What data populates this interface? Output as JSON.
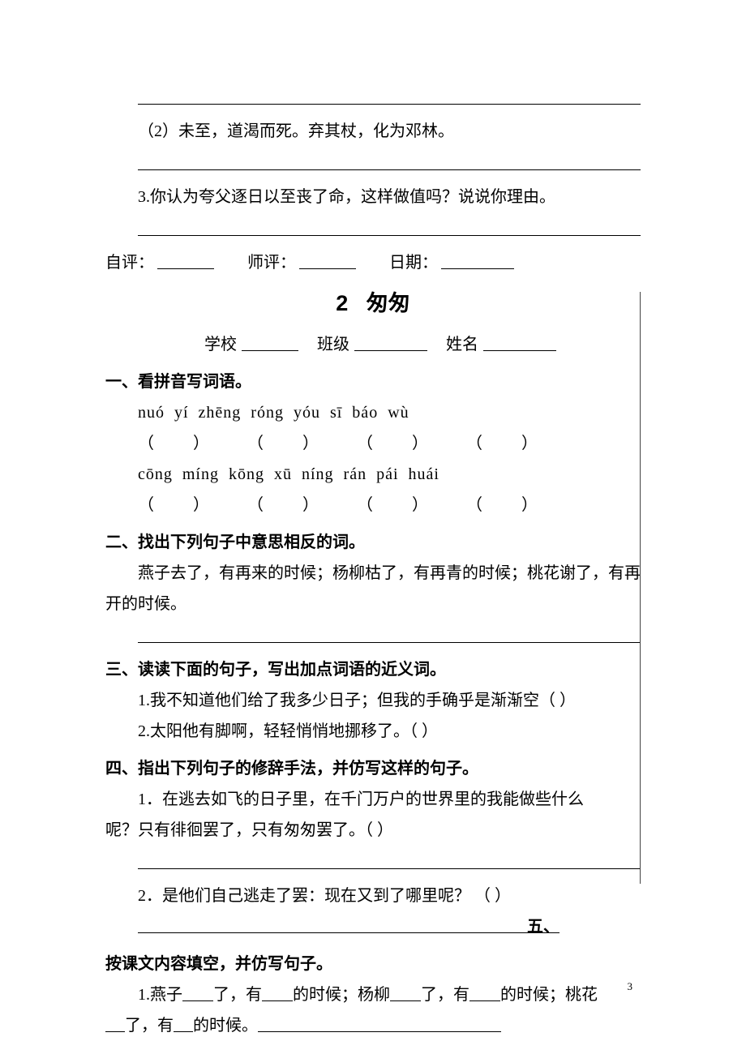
{
  "prev": {
    "blank1": "",
    "q2": "（2）未至，道渴而死。弃其杖，化为邓林。",
    "q3": "3.你认为夸父逐日以至丧了命，这样做值吗？说说你理由。"
  },
  "eval": {
    "self_label": "自评：",
    "teacher_label": "师评：",
    "date_label": "日期："
  },
  "title": {
    "num": "2",
    "text": "匆匆"
  },
  "info": {
    "school": "学校",
    "class": "班级",
    "name": "姓名"
  },
  "s1": {
    "heading": "一、看拼音写词语。",
    "p1": "nuó  yí     zhēng  róng    yóu  sī     báo  wù",
    "p2": "cōng  míng   kōng  xū      níng  rán   pái  huái"
  },
  "s2": {
    "heading": "二、找出下列句子中意思相反的词。",
    "text": "燕子去了，有再来的时候；杨柳枯了，有再青的时候；桃花谢了，有再开的时候。"
  },
  "s3": {
    "heading": "三、读读下面的句子，写出加点词语的近义词。",
    "q1": "1.我不知道他们给了我多少日子；但我的手确乎是渐渐空（    ）",
    "q2": "2.太阳他有脚啊，轻轻悄悄地挪移了。（     ）"
  },
  "s4": {
    "heading": "四、指出下列句子的修辞手法，并仿写这样的句子。",
    "q1a": "1．在逃去如飞的日子里，在千门万户的世界里的我能做些什么",
    "q1b": "呢？只有徘徊罢了，只有匆匆罢了。（        ）",
    "q2": "2．是他们自己逃走了罢：现在又到了哪里呢？ （        ）"
  },
  "s5": {
    "trailing": "五、",
    "heading": "按课文内容填空，并仿写句子。",
    "q1_a": "1.燕子",
    "q1_b": "了，有",
    "q1_c": "的时候；杨柳",
    "q1_d": "了，有",
    "q1_e": "的时候；桃花",
    "q1_f": "了，有",
    "q1_g": "的时候。"
  },
  "pageNumber": "3"
}
